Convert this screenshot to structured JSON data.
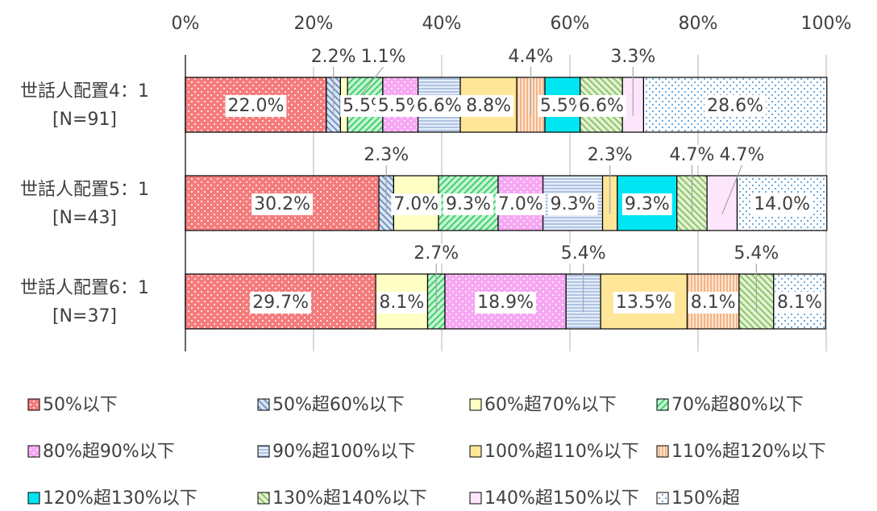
{
  "chart_data": {
    "type": "stacked-bar-horizontal",
    "categories": [
      [
        "世話人配置4：1",
        "[N=91]"
      ],
      [
        "世話人配置5：1",
        "[N=43]"
      ],
      [
        "世話人配置6：1",
        "[N=37]"
      ]
    ],
    "xlim": [
      0,
      100
    ],
    "xticks": [
      {
        "value": 0,
        "label": "0%"
      },
      {
        "value": 20,
        "label": "20%"
      },
      {
        "value": 40,
        "label": "40%"
      },
      {
        "value": 60,
        "label": "60%"
      },
      {
        "value": 80,
        "label": "80%"
      },
      {
        "value": 100,
        "label": "100%"
      }
    ],
    "grid": true,
    "legend": "bottom",
    "series": [
      {
        "name": "50%以下",
        "color": "#f47c7c",
        "pattern": "dots",
        "pattern_color": "#ffffff",
        "values": [
          22.0,
          30.2,
          29.7
        ],
        "value_labels": [
          "22.0%",
          "30.2%",
          "29.7%"
        ]
      },
      {
        "name": "50%超60%以下",
        "color": "#dce6f2",
        "pattern": "diagonal-back",
        "pattern_color": "#6f93c8",
        "values": [
          2.2,
          2.3,
          0
        ],
        "value_labels": [
          "2.2%",
          "2.3%",
          null
        ]
      },
      {
        "name": "60%超70%以下",
        "color": "#ffffc4",
        "pattern": "none",
        "pattern_color": "#ffffc4",
        "values": [
          1.1,
          7.0,
          8.1
        ],
        "value_labels": [
          "1.1%",
          "7.0%",
          "8.1%"
        ]
      },
      {
        "name": "70%超80%以下",
        "color": "#c6f5d2",
        "pattern": "diagonal",
        "pattern_color": "#3fcf6f",
        "values": [
          5.5,
          9.3,
          2.7
        ],
        "value_labels": [
          "5.5%",
          "9.3%",
          "2.7%"
        ]
      },
      {
        "name": "80%超90%以下",
        "color": "#f6a6f2",
        "pattern": "dots",
        "pattern_color": "#ffffff",
        "values": [
          5.5,
          7.0,
          18.9
        ],
        "value_labels": [
          "5.5%",
          "7.0%",
          "18.9%"
        ]
      },
      {
        "name": "90%超100%以下",
        "color": "#e6edf7",
        "pattern": "horizontal",
        "pattern_color": "#8eaad8",
        "values": [
          6.6,
          9.3,
          5.4
        ],
        "value_labels": [
          "6.6%",
          "9.3%",
          "5.4%"
        ]
      },
      {
        "name": "100%超110%以下",
        "color": "#ffe699",
        "pattern": "none",
        "pattern_color": "#ffe699",
        "values": [
          8.8,
          2.3,
          13.5
        ],
        "value_labels": [
          "8.8%",
          "2.3%",
          "13.5%"
        ]
      },
      {
        "name": "110%超120%以下",
        "color": "#fde4d0",
        "pattern": "vertical",
        "pattern_color": "#f2a46e",
        "values": [
          4.4,
          0,
          8.1
        ],
        "value_labels": [
          "4.4%",
          null,
          "8.1%"
        ]
      },
      {
        "name": "120%超130%以下",
        "color": "#00e5f2",
        "pattern": "none",
        "pattern_color": "#00e5f2",
        "values": [
          5.5,
          9.3,
          0
        ],
        "value_labels": [
          "5.5%",
          "9.3%",
          null
        ]
      },
      {
        "name": "130%超140%以下",
        "color": "#e4f2d4",
        "pattern": "diagonal-back",
        "pattern_color": "#8cc46a",
        "values": [
          6.6,
          4.7,
          5.4
        ],
        "value_labels": [
          "6.6%",
          "4.7%",
          "5.4%"
        ]
      },
      {
        "name": "140%超150%以下",
        "color": "#fde6fc",
        "pattern": "none",
        "pattern_color": "#fde6fc",
        "values": [
          3.3,
          4.7,
          0
        ],
        "value_labels": [
          "3.3%",
          "4.7%",
          null
        ]
      },
      {
        "name": "150%超",
        "color": "#ffffff",
        "pattern": "dots",
        "pattern_color": "#3b8fd6",
        "values": [
          28.6,
          14.0,
          8.1
        ],
        "value_labels": [
          "28.6%",
          "14.0%",
          "8.1%"
        ]
      }
    ]
  }
}
